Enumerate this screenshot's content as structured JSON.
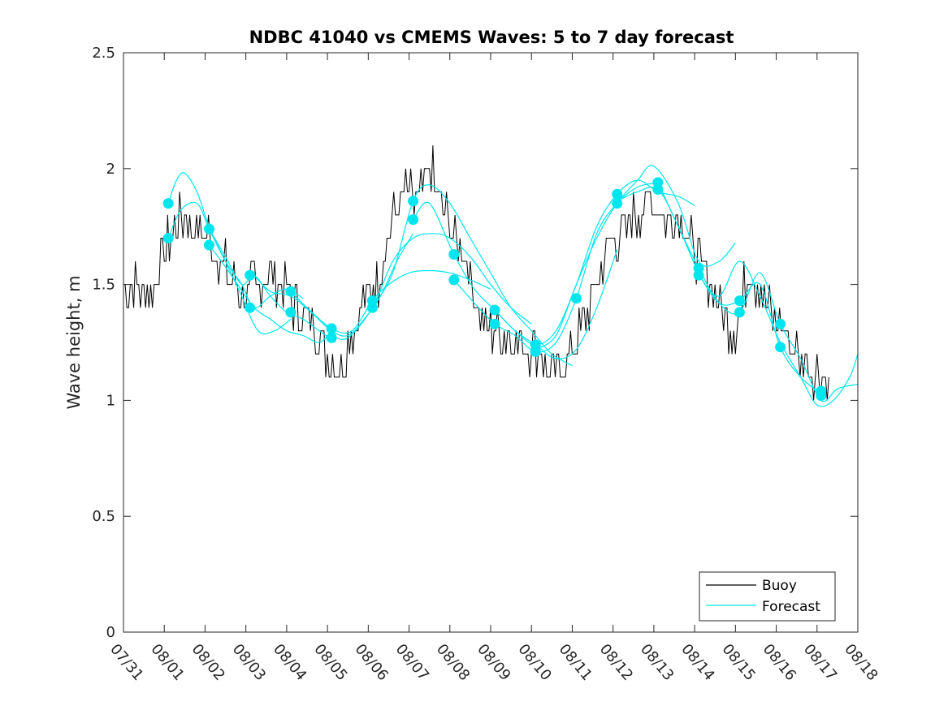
{
  "chart_data": {
    "type": "line",
    "title": "NDBC 41040 vs CMEMS Waves: 5 to 7 day forecast",
    "xlabel": "",
    "ylabel": "Wave height, m",
    "xlim": [
      0,
      18
    ],
    "ylim": [
      0,
      2.5
    ],
    "grid": false,
    "x_tick_labels": [
      "07/31",
      "08/01",
      "08/02",
      "08/03",
      "08/04",
      "08/05",
      "08/06",
      "08/07",
      "08/08",
      "08/09",
      "08/10",
      "08/11",
      "08/12",
      "08/13",
      "08/14",
      "08/15",
      "08/16",
      "08/17",
      "08/18"
    ],
    "y_ticks": [
      0,
      0.5,
      1,
      1.5,
      2,
      2.5
    ],
    "y_tick_labels": [
      "0",
      "0.5",
      "1",
      "1.5",
      "2",
      "2.5"
    ],
    "legend_position": "bottom-right",
    "colors": {
      "buoy": "#000000",
      "forecast": "#00e5ee",
      "axes": "#262626"
    },
    "series": [
      {
        "name": "Buoy",
        "values_note": "daily key points (days since 07/31 00:00, m)",
        "x": [
          0,
          0.3,
          0.6,
          0.9,
          1.2,
          1.5,
          1.8,
          2.1,
          2.4,
          2.7,
          3.0,
          3.3,
          3.6,
          3.9,
          4.2,
          4.5,
          4.8,
          5.1,
          5.4,
          5.7,
          6.0,
          6.3,
          6.6,
          6.9,
          7.2,
          7.5,
          7.8,
          8.1,
          8.4,
          8.7,
          9.0,
          9.3,
          9.6,
          9.9,
          10.2,
          10.5,
          10.8,
          11.1,
          11.4,
          11.7,
          12.0,
          12.3,
          12.6,
          12.9,
          13.2,
          13.5,
          13.8,
          14.1,
          14.4,
          14.7,
          15.0,
          15.3,
          15.6,
          15.9,
          16.2,
          16.5,
          16.8,
          17.1,
          17.3
        ],
        "y": [
          1.5,
          1.5,
          1.45,
          1.6,
          1.7,
          1.8,
          1.75,
          1.7,
          1.6,
          1.5,
          1.45,
          1.5,
          1.55,
          1.5,
          1.4,
          1.35,
          1.3,
          1.15,
          1.2,
          1.35,
          1.45,
          1.55,
          1.8,
          1.9,
          1.85,
          2.0,
          1.85,
          1.75,
          1.6,
          1.4,
          1.3,
          1.3,
          1.25,
          1.25,
          1.2,
          1.1,
          1.15,
          1.25,
          1.4,
          1.55,
          1.7,
          1.75,
          1.8,
          1.85,
          1.8,
          1.8,
          1.75,
          1.6,
          1.5,
          1.35,
          1.3,
          1.55,
          1.5,
          1.35,
          1.3,
          1.2,
          1.15,
          1.1,
          1.05
        ]
      },
      {
        "name": "Forecast",
        "runs": [
          {
            "x": [
              1.1,
              1.3,
              1.5,
              1.8,
              2.1,
              2.5,
              2.9,
              3.3,
              3.7,
              4.1
            ],
            "y": [
              1.85,
              1.95,
              1.98,
              1.9,
              1.75,
              1.6,
              1.45,
              1.3,
              1.3,
              1.35
            ]
          },
          {
            "x": [
              1.1,
              1.4,
              1.8,
              2.1,
              2.5,
              2.9,
              3.2,
              3.6,
              4.0,
              4.4
            ],
            "y": [
              1.7,
              1.82,
              1.85,
              1.74,
              1.6,
              1.5,
              1.4,
              1.45,
              1.48,
              1.44
            ]
          },
          {
            "x": [
              2.1,
              2.5,
              2.9,
              3.2,
              3.6,
              4.0,
              4.4,
              4.8,
              5.2
            ],
            "y": [
              1.74,
              1.62,
              1.5,
              1.54,
              1.45,
              1.38,
              1.35,
              1.3,
              1.25
            ]
          },
          {
            "x": [
              2.1,
              2.4,
              2.8,
              3.2,
              3.6,
              4.0,
              4.4,
              4.8,
              5.1
            ],
            "y": [
              1.67,
              1.6,
              1.5,
              1.4,
              1.35,
              1.3,
              1.28,
              1.25,
              1.3
            ]
          },
          {
            "x": [
              3.2,
              3.6,
              4.1,
              4.6,
              5.1,
              5.5,
              5.9,
              6.3,
              6.7,
              7.1
            ],
            "y": [
              1.54,
              1.47,
              1.45,
              1.38,
              1.3,
              1.28,
              1.35,
              1.45,
              1.6,
              1.72
            ]
          },
          {
            "x": [
              4.1,
              4.5,
              5.1,
              5.6,
              6.1,
              6.5,
              7.0,
              7.5,
              8.0,
              8.5,
              9.0
            ],
            "y": [
              1.47,
              1.4,
              1.31,
              1.3,
              1.43,
              1.5,
              1.55,
              1.56,
              1.55,
              1.52,
              1.48
            ]
          },
          {
            "x": [
              5.1,
              5.5,
              6.1,
              6.6,
              7.1,
              7.6,
              8.0,
              8.5,
              9.0,
              9.5,
              10.0
            ],
            "y": [
              1.28,
              1.27,
              1.4,
              1.6,
              1.7,
              1.72,
              1.7,
              1.62,
              1.5,
              1.4,
              1.33
            ]
          },
          {
            "x": [
              6.1,
              6.6,
              7.1,
              7.5,
              8.0,
              8.5,
              9.0,
              9.5,
              10.0,
              10.5,
              11.0
            ],
            "y": [
              1.4,
              1.55,
              1.86,
              1.93,
              1.85,
              1.7,
              1.55,
              1.4,
              1.3,
              1.2,
              1.15
            ]
          },
          {
            "x": [
              7.1,
              7.5,
              8.1,
              8.6,
              9.1,
              9.6,
              10.1,
              10.6,
              11.1,
              11.6,
              12.1
            ],
            "y": [
              1.78,
              1.85,
              1.63,
              1.48,
              1.39,
              1.3,
              1.24,
              1.18,
              1.22,
              1.4,
              1.65
            ]
          },
          {
            "x": [
              8.1,
              8.6,
              9.1,
              9.6,
              10.1,
              10.6,
              11.1,
              11.6,
              12.1,
              12.6,
              13.1
            ],
            "y": [
              1.52,
              1.42,
              1.33,
              1.28,
              1.21,
              1.25,
              1.44,
              1.72,
              1.85,
              1.92,
              1.94
            ]
          },
          {
            "x": [
              9.1,
              9.6,
              10.1,
              10.6,
              11.1,
              11.6,
              12.1,
              12.6,
              13.1,
              13.6,
              14.0
            ],
            "y": [
              1.39,
              1.3,
              1.24,
              1.3,
              1.5,
              1.75,
              1.89,
              1.95,
              1.9,
              1.88,
              1.84
            ]
          },
          {
            "x": [
              10.1,
              10.6,
              11.1,
              11.6,
              12.1,
              12.6,
              13.0,
              13.6,
              14.1,
              14.6,
              15.0
            ],
            "y": [
              1.22,
              1.28,
              1.5,
              1.7,
              1.85,
              1.95,
              2.01,
              1.85,
              1.6,
              1.6,
              1.68
            ]
          },
          {
            "x": [
              12.1,
              12.6,
              13.1,
              13.6,
              14.1,
              14.6,
              15.1,
              15.6,
              16.1,
              16.6,
              17.1
            ],
            "y": [
              1.86,
              1.9,
              1.91,
              1.75,
              1.55,
              1.42,
              1.43,
              1.5,
              1.23,
              1.1,
              1.03
            ]
          },
          {
            "x": [
              13.1,
              13.6,
              14.1,
              14.6,
              15.1,
              15.6,
              16.1,
              16.6,
              17.1,
              17.5,
              18.0
            ],
            "y": [
              1.94,
              1.75,
              1.57,
              1.42,
              1.38,
              1.55,
              1.33,
              1.18,
              1.0,
              1.05,
              1.07
            ]
          },
          {
            "x": [
              14.1,
              14.6,
              15.1,
              15.6,
              16.1,
              16.6,
              17.0,
              17.4,
              17.8,
              18.0
            ],
            "y": [
              1.54,
              1.45,
              1.6,
              1.45,
              1.25,
              1.1,
              0.98,
              1.0,
              1.1,
              1.2
            ]
          }
        ],
        "initial_points": {
          "x": [
            1.1,
            1.1,
            2.1,
            2.1,
            3.1,
            3.1,
            4.1,
            4.1,
            5.1,
            5.1,
            6.1,
            6.1,
            7.1,
            7.1,
            8.1,
            8.1,
            9.1,
            9.1,
            10.1,
            10.1,
            11.1,
            12.1,
            12.1,
            13.1,
            13.1,
            14.1,
            14.1,
            15.1,
            15.1,
            16.1,
            16.1,
            17.1,
            17.1
          ],
          "y": [
            1.85,
            1.7,
            1.74,
            1.67,
            1.54,
            1.4,
            1.47,
            1.38,
            1.31,
            1.27,
            1.43,
            1.4,
            1.86,
            1.78,
            1.63,
            1.52,
            1.39,
            1.33,
            1.24,
            1.21,
            1.44,
            1.89,
            1.85,
            1.94,
            1.91,
            1.57,
            1.54,
            1.43,
            1.38,
            1.33,
            1.23,
            1.04,
            1.02
          ]
        }
      }
    ],
    "legend": [
      "Buoy",
      "Forecast"
    ]
  }
}
